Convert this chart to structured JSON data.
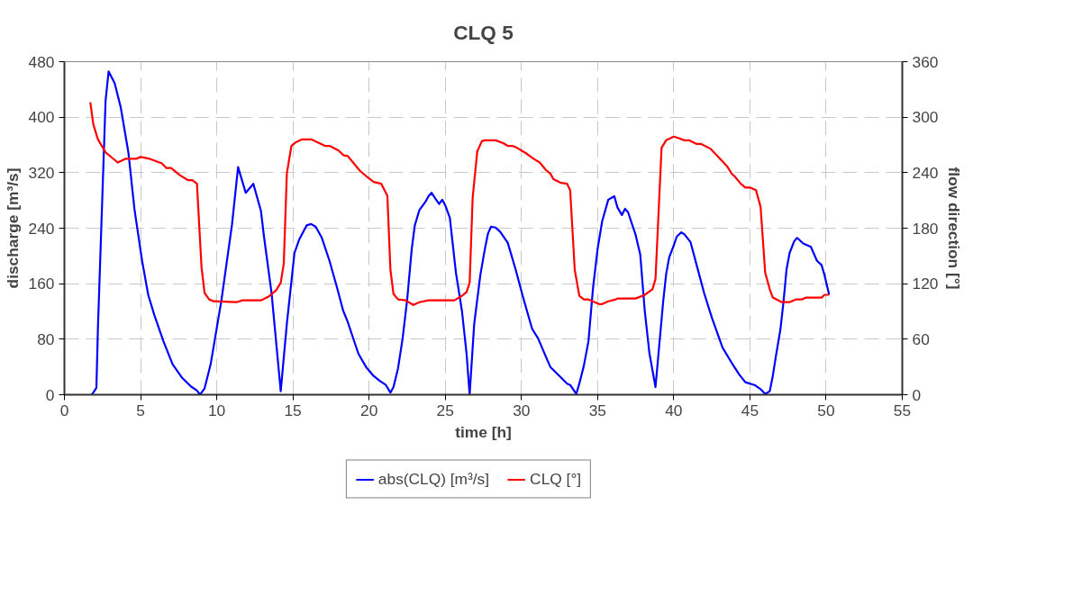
{
  "chart_data": {
    "type": "line",
    "title": "CLQ 5",
    "xlabel": "time [h]",
    "ylabel": "discharge [m³/s]",
    "y2label": "flow direction [°]",
    "xlim": [
      0,
      55
    ],
    "xticks": [
      0,
      5,
      10,
      15,
      20,
      25,
      30,
      35,
      40,
      45,
      50,
      55
    ],
    "ylim": [
      0,
      480
    ],
    "yticks": [
      0,
      80,
      160,
      240,
      320,
      400,
      480
    ],
    "y2lim": [
      0,
      360
    ],
    "y2ticks": [
      0,
      60,
      120,
      180,
      240,
      300,
      360
    ],
    "grid": true,
    "legend": "bottom",
    "marker": "none",
    "line_style": "solid",
    "series": [
      {
        "name": "abs(CLQ) [m³/s]",
        "color": "#0000ff",
        "axis": "y",
        "x": [
          1.8,
          2.1,
          2.2,
          2.7,
          2.9,
          3.3,
          3.7,
          4.2,
          4.6,
          5.1,
          5.5,
          5.9,
          6.5,
          7.1,
          7.7,
          8.3,
          8.7,
          8.9,
          9.2,
          9.6,
          10.3,
          11.0,
          11.4,
          11.9,
          12.4,
          12.9,
          13.1,
          13.6,
          14.2,
          14.6,
          15.1,
          15.4,
          15.9,
          16.2,
          16.5,
          16.9,
          17.4,
          17.9,
          18.3,
          18.6,
          18.9,
          19.3,
          19.8,
          20.3,
          20.7,
          21.1,
          21.4,
          21.6,
          21.9,
          22.2,
          22.5,
          22.8,
          23.0,
          23.3,
          23.7,
          23.9,
          24.1,
          24.4,
          24.6,
          24.8,
          25.0,
          25.3,
          25.7,
          26.1,
          26.4,
          26.6,
          26.9,
          27.3,
          27.6,
          27.8,
          28.0,
          28.3,
          28.6,
          29.1,
          29.6,
          30.1,
          30.7,
          31.1,
          31.6,
          31.9,
          32.5,
          33.0,
          33.2,
          33.6,
          33.8,
          34.1,
          34.4,
          34.7,
          35.0,
          35.3,
          35.7,
          36.1,
          36.3,
          36.6,
          36.8,
          37.0,
          37.5,
          37.8,
          38.1,
          38.4,
          38.8,
          39.3,
          39.5,
          39.7,
          40.0,
          40.2,
          40.5,
          40.7,
          41.1,
          41.5,
          42.0,
          42.5,
          43.2,
          43.8,
          44.3,
          44.7,
          45.3,
          45.7,
          46.0,
          46.3,
          46.5,
          46.7,
          47.0,
          47.2,
          47.4,
          47.6,
          47.9,
          48.1,
          48.5,
          49.0,
          49.4,
          49.7,
          49.9,
          50.2
        ],
        "values": [
          0,
          10,
          96,
          423,
          466,
          449,
          414,
          349,
          267,
          193,
          144,
          115,
          77,
          44,
          25,
          12,
          6,
          0,
          9,
          44,
          135,
          245,
          328,
          291,
          304,
          265,
          228,
          146,
          5,
          102,
          204,
          223,
          244,
          246,
          242,
          226,
          193,
          154,
          121,
          105,
          85,
          59,
          40,
          27,
          20,
          14,
          3,
          11,
          38,
          81,
          137,
          210,
          244,
          266,
          278,
          286,
          291,
          281,
          275,
          281,
          273,
          255,
          176,
          120,
          59,
          0,
          102,
          172,
          210,
          232,
          242,
          241,
          235,
          219,
          182,
          141,
          95,
          81,
          55,
          40,
          27,
          16,
          14,
          1,
          16,
          42,
          77,
          154,
          210,
          250,
          281,
          286,
          270,
          259,
          268,
          263,
          230,
          202,
          120,
          60,
          11,
          133,
          174,
          198,
          215,
          228,
          234,
          231,
          220,
          187,
          146,
          111,
          68,
          46,
          29,
          18,
          14,
          8,
          1,
          5,
          27,
          55,
          94,
          133,
          180,
          204,
          221,
          226,
          218,
          213,
          193,
          187,
          172,
          144
        ]
      },
      {
        "name": "CLQ [°]",
        "color": "#ff0000",
        "axis": "y2",
        "x": [
          1.7,
          1.9,
          2.2,
          2.7,
          3.5,
          4.0,
          4.7,
          5.0,
          5.6,
          6.4,
          6.7,
          7.0,
          7.6,
          8.1,
          8.4,
          8.7,
          9.0,
          9.2,
          9.5,
          9.8,
          11.3,
          11.7,
          12.9,
          13.4,
          13.9,
          14.2,
          14.4,
          14.6,
          14.9,
          15.2,
          15.6,
          16.2,
          16.6,
          17.1,
          17.4,
          18.0,
          18.3,
          18.6,
          18.9,
          19.4,
          19.9,
          20.3,
          20.8,
          21.2,
          21.4,
          21.6,
          21.9,
          22.4,
          22.9,
          23.3,
          23.9,
          25.6,
          26.1,
          26.4,
          26.6,
          26.8,
          27.1,
          27.4,
          27.6,
          28.3,
          28.8,
          29.1,
          29.4,
          29.7,
          30.3,
          30.8,
          31.2,
          31.6,
          31.9,
          32.1,
          32.6,
          33.0,
          33.2,
          33.5,
          33.8,
          34.1,
          34.4,
          35.1,
          35.3,
          35.7,
          36.2,
          36.3,
          37.5,
          38.1,
          38.6,
          38.8,
          39.2,
          39.5,
          40.0,
          40.2,
          40.7,
          41.0,
          41.5,
          41.8,
          42.4,
          43.5,
          43.8,
          44.0,
          44.4,
          44.7,
          45.0,
          45.4,
          45.7,
          46.0,
          46.3,
          46.5,
          47.1,
          47.6,
          48.0,
          48.4,
          48.7,
          49.7,
          49.9,
          50.2
        ],
        "values": [
          316,
          292,
          276,
          262,
          251,
          255,
          255,
          257,
          255,
          250,
          245,
          245,
          237,
          232,
          232,
          228,
          138,
          110,
          103,
          101,
          100,
          102,
          102,
          106,
          113,
          121,
          142,
          239,
          269,
          273,
          276,
          276,
          273,
          269,
          269,
          264,
          259,
          258,
          252,
          242,
          235,
          230,
          228,
          215,
          135,
          109,
          103,
          102,
          97,
          100,
          102,
          102,
          107,
          111,
          121,
          213,
          263,
          274,
          275,
          275,
          272,
          269,
          269,
          267,
          261,
          255,
          251,
          243,
          239,
          233,
          229,
          228,
          221,
          135,
          107,
          103,
          103,
          98,
          98,
          101,
          103,
          104,
          104,
          108,
          114,
          125,
          267,
          275,
          279,
          278,
          275,
          275,
          271,
          271,
          266,
          247,
          239,
          236,
          228,
          224,
          224,
          221,
          203,
          132,
          114,
          105,
          100,
          100,
          103,
          103,
          105,
          105,
          108,
          108
        ]
      }
    ]
  }
}
